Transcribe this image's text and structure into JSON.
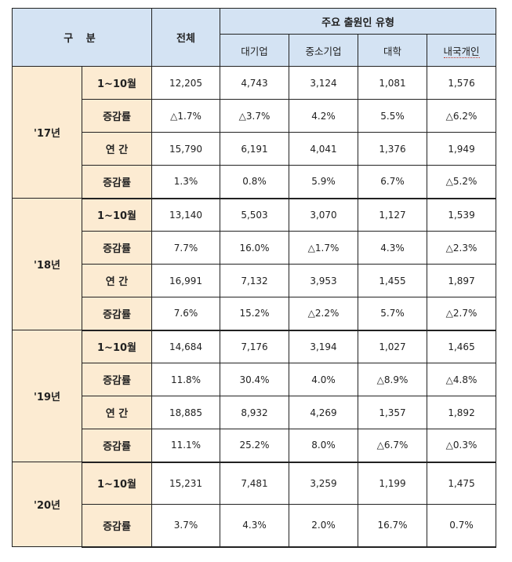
{
  "header": {
    "division": "구 분",
    "total": "전체",
    "type_group": "주요 출원인 유형",
    "types": [
      "대기업",
      "중소기업",
      "대학",
      "내국개인"
    ]
  },
  "years": [
    {
      "label": "'17년",
      "rows": [
        {
          "label": "1~10월",
          "values": [
            "12,205",
            "4,743",
            "3,124",
            "1,081",
            "1,576"
          ]
        },
        {
          "label": "증감률",
          "values": [
            "△1.7%",
            "△3.7%",
            "4.2%",
            "5.5%",
            "△6.2%"
          ]
        },
        {
          "label": "연 간",
          "values": [
            "15,790",
            "6,191",
            "4,041",
            "1,376",
            "1,949"
          ]
        },
        {
          "label": "증감률",
          "values": [
            "1.3%",
            "0.8%",
            "5.9%",
            "6.7%",
            "△5.2%"
          ]
        }
      ]
    },
    {
      "label": "'18년",
      "rows": [
        {
          "label": "1~10월",
          "values": [
            "13,140",
            "5,503",
            "3,070",
            "1,127",
            "1,539"
          ]
        },
        {
          "label": "증감률",
          "values": [
            "7.7%",
            "16.0%",
            "△1.7%",
            "4.3%",
            "△2.3%"
          ]
        },
        {
          "label": "연 간",
          "values": [
            "16,991",
            "7,132",
            "3,953",
            "1,455",
            "1,897"
          ]
        },
        {
          "label": "증감률",
          "values": [
            "7.6%",
            "15.2%",
            "△2.2%",
            "5.7%",
            "△2.7%"
          ]
        }
      ]
    },
    {
      "label": "'19년",
      "rows": [
        {
          "label": "1~10월",
          "values": [
            "14,684",
            "7,176",
            "3,194",
            "1,027",
            "1,465"
          ]
        },
        {
          "label": "증감률",
          "values": [
            "11.8%",
            "30.4%",
            "4.0%",
            "△8.9%",
            "△4.8%"
          ]
        },
        {
          "label": "연 간",
          "values": [
            "18,885",
            "8,932",
            "4,269",
            "1,357",
            "1,892"
          ]
        },
        {
          "label": "증감률",
          "values": [
            "11.1%",
            "25.2%",
            "8.0%",
            "△6.7%",
            "△0.3%"
          ]
        }
      ]
    },
    {
      "label": "'20년",
      "rows": [
        {
          "label": "1~10월",
          "values": [
            "15,231",
            "7,481",
            "3,259",
            "1,199",
            "1,475"
          ]
        },
        {
          "label": "증감률",
          "values": [
            "3.7%",
            "4.3%",
            "2.0%",
            "16.7%",
            "0.7%"
          ]
        }
      ]
    }
  ]
}
